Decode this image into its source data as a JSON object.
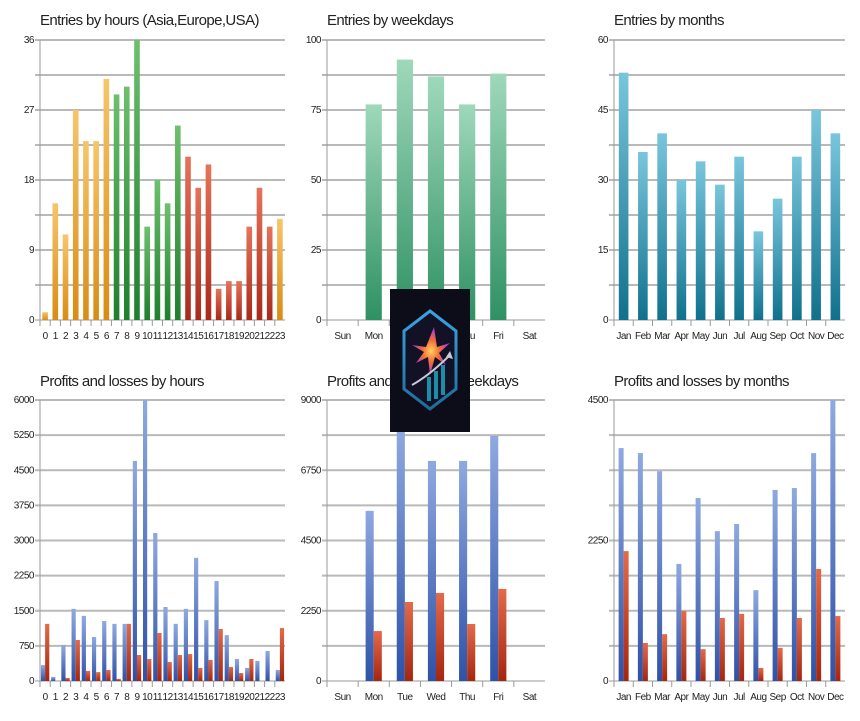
{
  "chart_data": [
    {
      "id": "entries-hours",
      "type": "bar",
      "title": "Entries by hours (Asia,Europe,USA)",
      "xlabel": "",
      "ylabel": "",
      "ylim": [
        0,
        36
      ],
      "yticks": [
        0,
        9,
        18,
        27,
        36
      ],
      "grid": true,
      "categories": [
        "0",
        "1",
        "2",
        "3",
        "4",
        "5",
        "6",
        "7",
        "8",
        "9",
        "10",
        "11",
        "12",
        "13",
        "14",
        "15",
        "16",
        "17",
        "18",
        "19",
        "20",
        "21",
        "22",
        "23"
      ],
      "values": [
        1,
        15,
        11,
        27,
        23,
        23,
        31,
        29,
        30,
        36,
        12,
        18,
        15,
        25,
        21,
        17,
        20,
        4,
        5,
        5,
        12,
        17,
        12,
        13
      ],
      "bar_sessions": [
        "Asia",
        "Asia",
        "Asia",
        "Asia",
        "Asia",
        "Asia",
        "Asia",
        "Europe",
        "Europe",
        "Europe",
        "Europe",
        "Europe",
        "Europe",
        "Europe",
        "USA",
        "USA",
        "USA",
        "USA",
        "USA",
        "USA",
        "USA",
        "USA",
        "USA",
        "Asia"
      ],
      "session_colors": {
        "Asia": [
          "#f7c56a",
          "#d98c14"
        ],
        "Europe": [
          "#6dc06d",
          "#1e7f2c"
        ],
        "USA": [
          "#e6735a",
          "#a9291a"
        ]
      }
    },
    {
      "id": "entries-weekdays",
      "type": "bar",
      "title": "Entries by weekdays",
      "xlabel": "",
      "ylabel": "",
      "ylim": [
        0,
        100
      ],
      "yticks": [
        0,
        25,
        50,
        75,
        100
      ],
      "grid": true,
      "categories": [
        "Sun",
        "Mon",
        "Tue",
        "Wed",
        "Thu",
        "Fri",
        "Sat"
      ],
      "values": [
        0,
        77,
        93,
        87,
        77,
        88,
        0
      ],
      "color": [
        "#9fd8bb",
        "#2f9163"
      ]
    },
    {
      "id": "entries-months",
      "type": "bar",
      "title": "Entries by months",
      "xlabel": "",
      "ylabel": "",
      "ylim": [
        0,
        60
      ],
      "yticks": [
        0,
        15,
        30,
        45,
        60
      ],
      "grid": true,
      "categories": [
        "Jan",
        "Feb",
        "Mar",
        "Apr",
        "May",
        "Jun",
        "Jul",
        "Aug",
        "Sep",
        "Oct",
        "Nov",
        "Dec"
      ],
      "values": [
        53,
        36,
        40,
        30,
        34,
        29,
        35,
        19,
        26,
        35,
        45,
        40
      ],
      "color": [
        "#79c6dc",
        "#10718d"
      ]
    },
    {
      "id": "pl-hours",
      "type": "bar",
      "title": "Profits and losses by hours",
      "xlabel": "",
      "ylabel": "",
      "ylim": [
        0,
        6000
      ],
      "yticks": [
        0,
        750,
        1500,
        2250,
        3000,
        3750,
        4500,
        5250,
        6000
      ],
      "grid": true,
      "categories": [
        "0",
        "1",
        "2",
        "3",
        "4",
        "5",
        "6",
        "7",
        "8",
        "9",
        "10",
        "11",
        "12",
        "13",
        "14",
        "15",
        "16",
        "17",
        "18",
        "19",
        "20",
        "21",
        "22",
        "23"
      ],
      "series": [
        {
          "name": "Profits",
          "color": [
            "#8fa9e0",
            "#2f52a8"
          ],
          "values": [
            340,
            85,
            770,
            1540,
            1390,
            940,
            1280,
            1220,
            1220,
            4700,
            6000,
            3160,
            1580,
            1220,
            1540,
            2630,
            1300,
            2135,
            980,
            470,
            280,
            430,
            640,
            235
          ]
        },
        {
          "name": "Losses",
          "color": [
            "#e46a4a",
            "#a5260f"
          ],
          "values": [
            1220,
            0,
            65,
            875,
            215,
            190,
            235,
            45,
            1220,
            555,
            470,
            1025,
            405,
            555,
            575,
            280,
            450,
            1110,
            300,
            170,
            470,
            0,
            0,
            1130
          ]
        }
      ]
    },
    {
      "id": "pl-weekdays",
      "type": "bar",
      "title": "Profits and losses by weekdays",
      "xlabel": "",
      "ylabel": "",
      "ylim": [
        0,
        9000
      ],
      "yticks": [
        0,
        2250,
        4500,
        6750,
        9000
      ],
      "grid": true,
      "categories": [
        "Sun",
        "Mon",
        "Tue",
        "Wed",
        "Thu",
        "Fri",
        "Sat"
      ],
      "series": [
        {
          "name": "Profits",
          "color": [
            "#8fa9e0",
            "#2f52a8"
          ],
          "values": [
            0,
            5450,
            8100,
            7050,
            7050,
            7850,
            0
          ]
        },
        {
          "name": "Losses",
          "color": [
            "#e46a4a",
            "#a5260f"
          ],
          "values": [
            0,
            1600,
            2530,
            2820,
            1825,
            2950,
            0
          ]
        }
      ]
    },
    {
      "id": "pl-months",
      "type": "bar",
      "title": "Profits and losses by months",
      "xlabel": "",
      "ylabel": "",
      "ylim": [
        0,
        4500
      ],
      "yticks": [
        0,
        2250,
        4500
      ],
      "grid": true,
      "categories": [
        "Jan",
        "Feb",
        "Mar",
        "Apr",
        "May",
        "Jun",
        "Jul",
        "Aug",
        "Sep",
        "Oct",
        "Nov",
        "Dec"
      ],
      "series": [
        {
          "name": "Profits",
          "color": [
            "#8fa9e0",
            "#2f52a8"
          ],
          "values": [
            3730,
            3650,
            3360,
            1875,
            2930,
            2400,
            2515,
            1455,
            3060,
            3090,
            3650,
            4500
          ]
        },
        {
          "name": "Losses",
          "color": [
            "#e46a4a",
            "#a5260f"
          ],
          "values": [
            2080,
            610,
            750,
            1120,
            510,
            1010,
            1075,
            210,
            530,
            1010,
            1795,
            1040
          ]
        }
      ]
    }
  ],
  "overlay": {
    "logo_icon": "hexagon-star-chart-logo",
    "background": "#0d0c19"
  }
}
